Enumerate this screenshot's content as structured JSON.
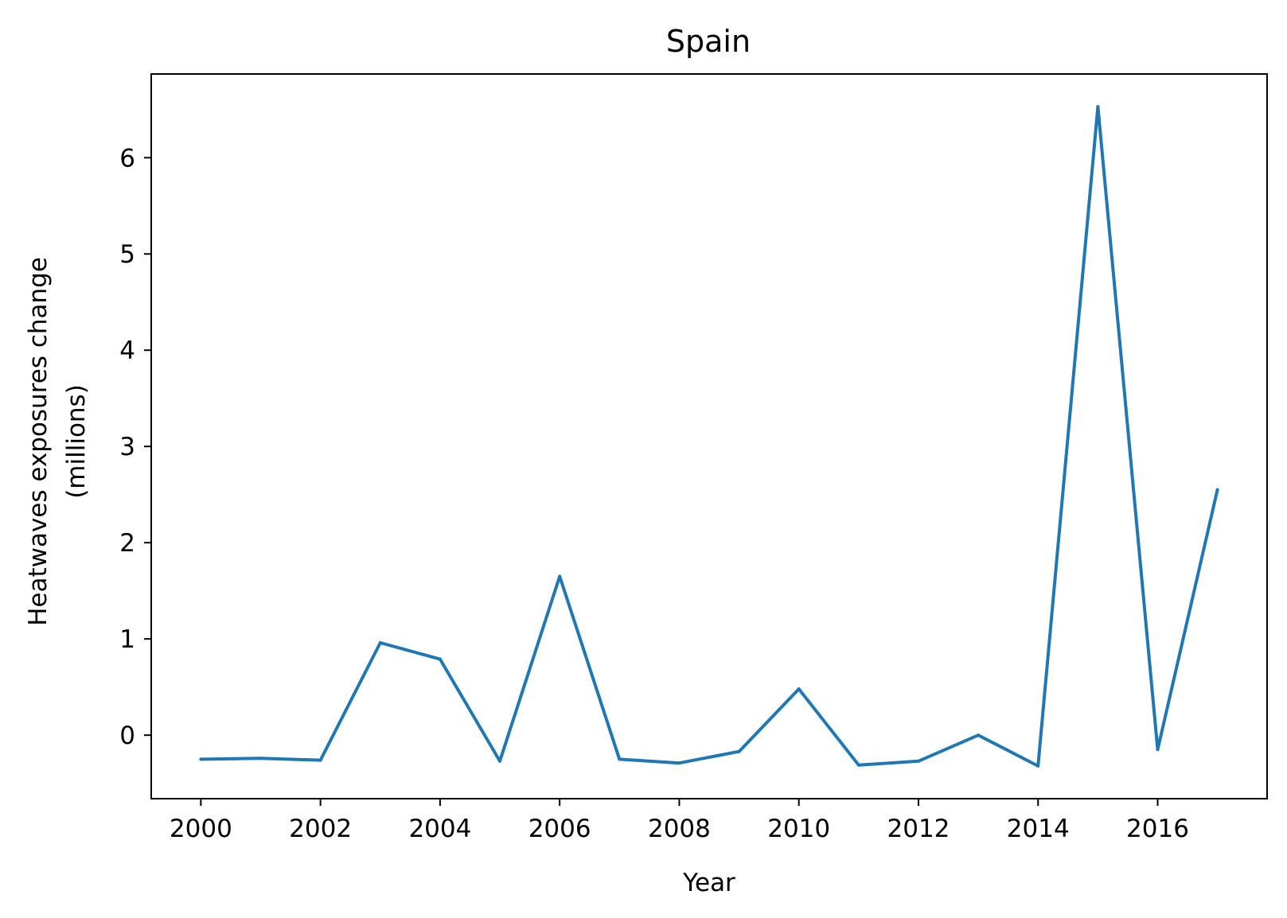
{
  "chart_data": {
    "type": "line",
    "title": "Spain",
    "xlabel": "Year",
    "ylabel_line1": "Heatwaves exposures change",
    "ylabel_line2": "(millions)",
    "x": [
      2000,
      2001,
      2002,
      2003,
      2004,
      2005,
      2006,
      2007,
      2008,
      2009,
      2010,
      2011,
      2012,
      2013,
      2014,
      2015,
      2016,
      2017
    ],
    "series": [
      {
        "values": [
          -0.25,
          -0.24,
          -0.26,
          0.96,
          0.79,
          -0.27,
          1.65,
          -0.25,
          -0.29,
          -0.17,
          0.48,
          -0.31,
          -0.27,
          0.0,
          -0.32,
          6.53,
          -0.15,
          2.55
        ],
        "color": "#1f77b4"
      }
    ],
    "xlim": [
      1999.17,
      2017.83
    ],
    "ylim": [
      -0.66,
      6.87
    ],
    "xticks": [
      2000,
      2002,
      2004,
      2006,
      2008,
      2010,
      2012,
      2014,
      2016
    ],
    "xtick_labels": [
      "2000",
      "2002",
      "2004",
      "2006",
      "2008",
      "2010",
      "2012",
      "2014",
      "2016"
    ],
    "yticks": [
      0,
      1,
      2,
      3,
      4,
      5,
      6
    ],
    "ytick_labels": [
      "0",
      "1",
      "2",
      "3",
      "4",
      "5",
      "6"
    ],
    "grid": false,
    "legend": "none"
  }
}
